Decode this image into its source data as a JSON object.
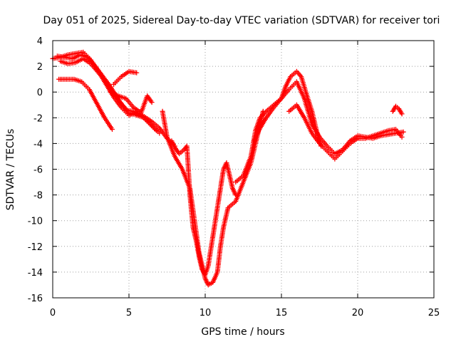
{
  "chart_data": {
    "type": "scatter",
    "title": "Day 051 of 2025, Sidereal Day-to-day VTEC variation (SDTVAR) for receiver tori",
    "xlabel": "GPS time / hours",
    "ylabel": "SDTVAR / TECUs",
    "xlim": [
      0,
      25
    ],
    "ylim": [
      -16,
      4
    ],
    "xticks": [
      0,
      5,
      10,
      15,
      20,
      25
    ],
    "yticks": [
      -16,
      -14,
      -12,
      -10,
      -8,
      -6,
      -4,
      -2,
      0,
      2,
      4
    ],
    "grid": true,
    "marker": "plus",
    "color": "#ff0000",
    "series": [
      {
        "x": [
          0.0,
          0.5,
          1.0,
          1.5,
          2.0,
          2.5,
          3.0,
          3.5,
          4.0,
          4.5,
          5.0,
          5.5,
          6.0,
          6.5,
          7.0,
          7.5,
          8.0
        ],
        "y": [
          2.6,
          2.7,
          2.9,
          3.0,
          3.1,
          2.5,
          1.6,
          0.6,
          -0.4,
          -1.2,
          -1.8,
          -1.6,
          -1.9,
          -2.3,
          -2.8,
          -3.6,
          -4.2
        ]
      },
      {
        "x": [
          0.5,
          1.0,
          1.5,
          2.0,
          2.5,
          3.0,
          3.5,
          4.0,
          4.5,
          5.0,
          5.5,
          6.0,
          6.5,
          7.0
        ],
        "y": [
          2.4,
          2.2,
          2.3,
          2.6,
          2.2,
          1.5,
          0.8,
          -0.1,
          -0.9,
          -1.6,
          -1.8,
          -2.0,
          -2.6,
          -3.2
        ]
      },
      {
        "x": [
          0.3,
          0.8,
          1.3,
          1.8,
          2.3,
          2.8,
          3.3,
          3.8,
          4.3,
          4.8,
          5.3,
          5.8,
          6.3,
          6.8
        ],
        "y": [
          2.8,
          2.7,
          2.6,
          2.9,
          2.7,
          2.0,
          1.2,
          0.4,
          -0.6,
          -1.4,
          -1.5,
          -1.8,
          -2.4,
          -3.0
        ]
      },
      {
        "x": [
          0.4,
          0.9,
          1.4,
          1.9,
          2.4,
          2.9,
          3.4,
          3.9
        ],
        "y": [
          1.0,
          1.0,
          1.0,
          0.8,
          0.2,
          -0.9,
          -2.0,
          -2.9
        ]
      },
      {
        "x": [
          4.0,
          4.5,
          5.0,
          5.5
        ],
        "y": [
          0.6,
          1.2,
          1.6,
          1.5
        ]
      },
      {
        "x": [
          3.8,
          4.3,
          4.8,
          5.3,
          5.8,
          6.2,
          6.5
        ],
        "y": [
          0.0,
          -0.3,
          -0.5,
          -1.2,
          -1.6,
          -0.3,
          -0.8
        ]
      },
      {
        "x": [
          7.2,
          7.5,
          8.0,
          8.5,
          9.0,
          9.3,
          9.6,
          9.8,
          10.0,
          10.2,
          10.5,
          10.8,
          11.0,
          11.2,
          11.5,
          12.0,
          12.5,
          13.0,
          13.3,
          13.6,
          13.8
        ],
        "y": [
          -1.5,
          -3.5,
          -5.0,
          -6.0,
          -7.5,
          -10.0,
          -12.5,
          -13.5,
          -14.5,
          -15.0,
          -14.8,
          -14.0,
          -12.0,
          -10.5,
          -9.0,
          -8.5,
          -7.0,
          -5.5,
          -4.0,
          -2.5,
          -1.5
        ]
      },
      {
        "x": [
          7.8,
          8.0,
          8.3,
          8.6,
          8.8,
          9.0,
          9.2,
          9.4,
          9.6,
          9.8,
          10.0,
          10.2,
          10.4,
          10.6,
          10.8,
          11.0,
          11.2,
          11.4,
          11.6,
          11.8,
          12.0
        ],
        "y": [
          -3.8,
          -4.3,
          -4.8,
          -4.5,
          -4.2,
          -8.0,
          -10.5,
          -11.5,
          -12.8,
          -13.8,
          -14.2,
          -13.5,
          -12.0,
          -10.5,
          -9.0,
          -7.5,
          -6.0,
          -5.5,
          -6.5,
          -7.5,
          -8.0
        ]
      },
      {
        "x": [
          12.0,
          12.5,
          13.0,
          13.3,
          13.6,
          14.0,
          14.5,
          15.0,
          15.3,
          15.6,
          16.0,
          16.3,
          16.6,
          17.0,
          17.3,
          17.6
        ],
        "y": [
          -7.0,
          -6.5,
          -5.0,
          -3.0,
          -2.0,
          -1.5,
          -1.0,
          -0.5,
          0.5,
          1.2,
          1.6,
          1.2,
          0.0,
          -1.5,
          -3.0,
          -4.2
        ]
      },
      {
        "x": [
          13.2,
          13.5,
          14.0,
          14.5,
          15.0,
          15.5,
          16.0,
          16.5,
          17.0,
          17.5,
          18.0,
          18.5,
          19.0,
          19.5,
          20.0,
          20.5,
          21.0,
          21.5,
          22.0,
          22.5,
          23.0
        ],
        "y": [
          -3.8,
          -3.0,
          -2.0,
          -1.2,
          -0.5,
          0.2,
          0.8,
          -0.5,
          -2.5,
          -3.5,
          -4.2,
          -4.8,
          -4.5,
          -3.8,
          -3.4,
          -3.5,
          -3.6,
          -3.4,
          -3.3,
          -3.2,
          -3.1
        ]
      },
      {
        "x": [
          15.5,
          16.0,
          16.5,
          17.0,
          17.5,
          18.0,
          18.5,
          19.0,
          19.5,
          20.0,
          20.5,
          21.0,
          21.5,
          22.0,
          22.5,
          22.9
        ],
        "y": [
          -1.5,
          -1.0,
          -2.0,
          -3.2,
          -4.0,
          -4.6,
          -5.2,
          -4.6,
          -4.0,
          -3.6,
          -3.6,
          -3.4,
          -3.2,
          -3.0,
          -2.9,
          -3.5
        ]
      },
      {
        "x": [
          22.3,
          22.5,
          22.7,
          22.9
        ],
        "y": [
          -1.5,
          -1.1,
          -1.3,
          -1.7
        ]
      }
    ]
  }
}
